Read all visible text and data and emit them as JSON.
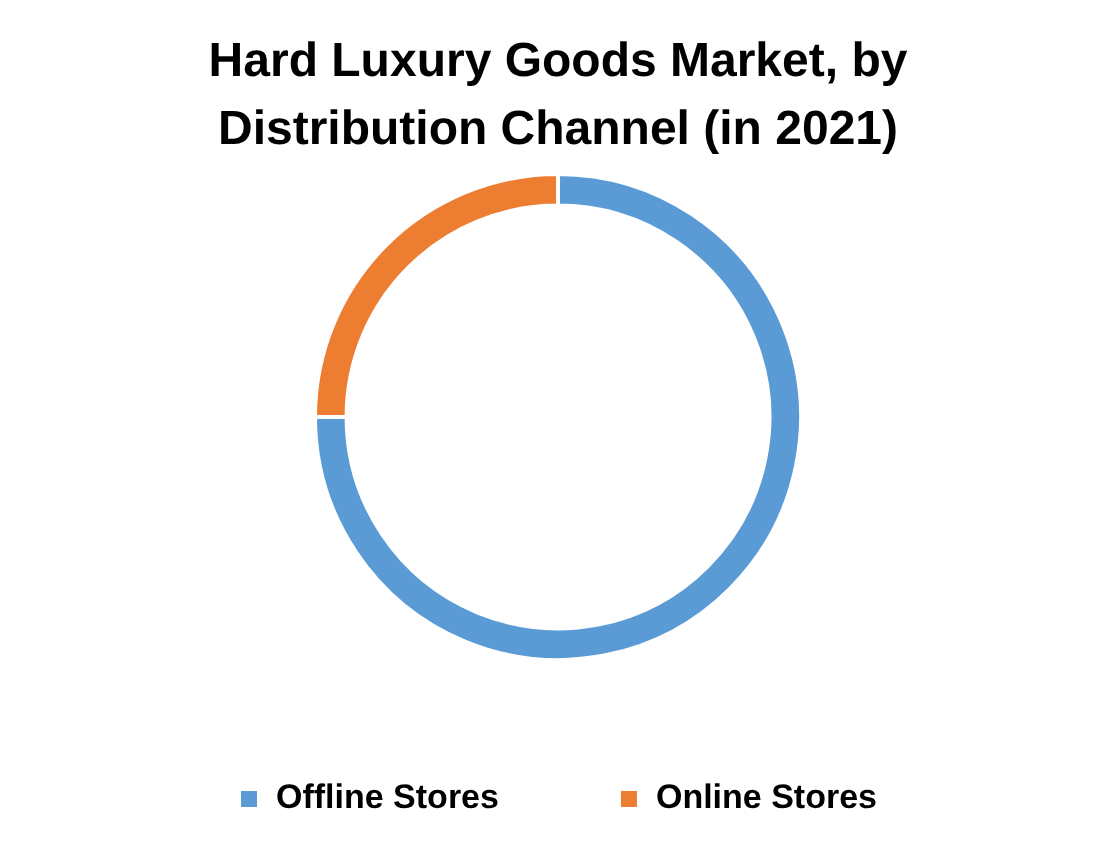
{
  "chart_data": {
    "type": "donut",
    "title": "Hard Luxury Goods Market, by Distribution Channel (in 2021)",
    "categories": [
      "Offline Stores",
      "Online Stores"
    ],
    "values": [
      75,
      25
    ],
    "colors": [
      "#5b9bd5",
      "#ed7d31"
    ],
    "legend": "bottom"
  }
}
